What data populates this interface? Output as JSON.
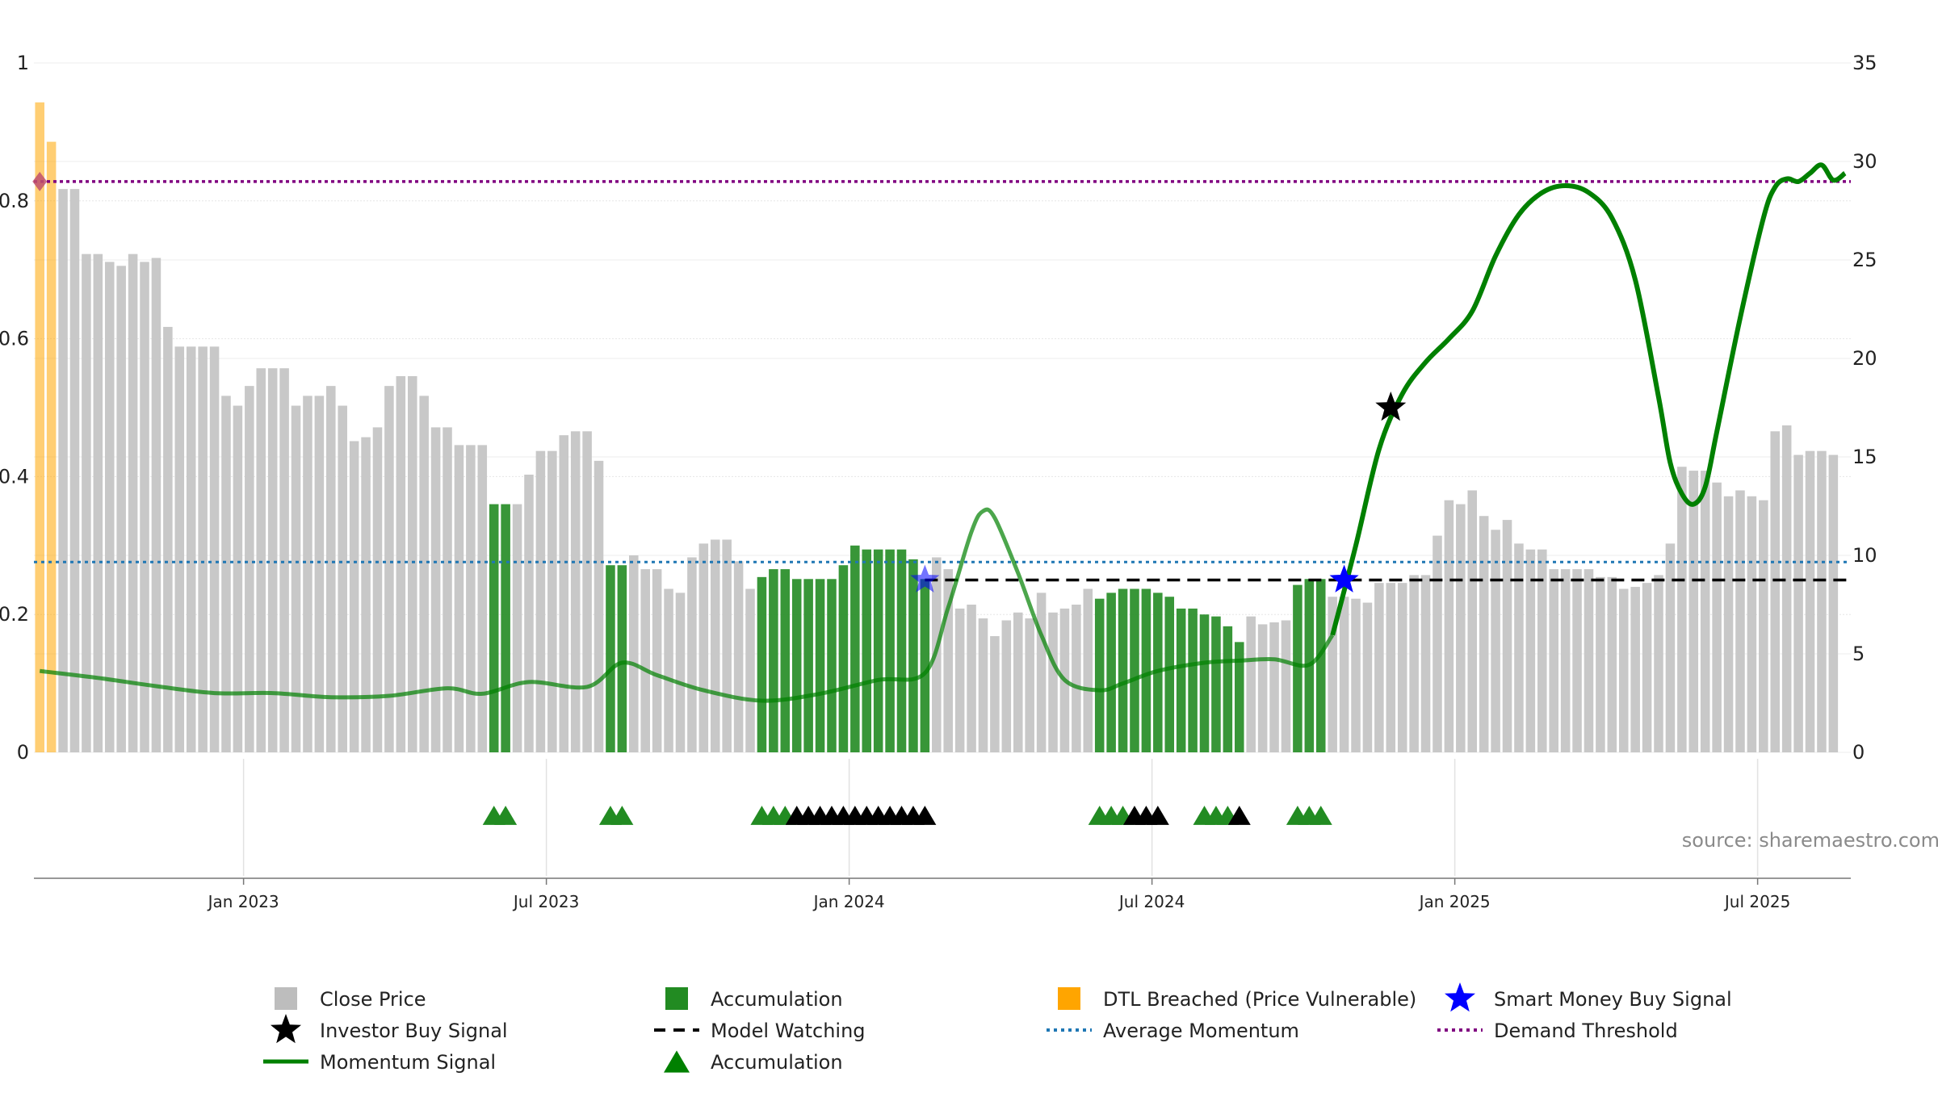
{
  "chart_data": {
    "type": "bar",
    "left_axis": {
      "ylim": [
        0,
        1
      ],
      "ticks": [
        "0",
        "0.2",
        "0.4",
        "0.6",
        "0.8",
        "1"
      ]
    },
    "right_axis": {
      "ylim": [
        0,
        35
      ],
      "ticks": [
        "0",
        "5",
        "10",
        "15",
        "20",
        "25",
        "30",
        "35"
      ]
    },
    "x_ticks": [
      "Jan 2023",
      "Jul 2023",
      "Jan 2024",
      "Jul 2024",
      "Jan 2025",
      "Jul 2025"
    ],
    "x_tick_weeks": [
      18,
      44,
      70,
      96,
      122,
      148
    ],
    "week_count": 156,
    "close_price": [
      33,
      31,
      28.6,
      28.6,
      25.3,
      25.3,
      24.9,
      24.7,
      25.3,
      24.9,
      25.1,
      21.6,
      20.6,
      20.6,
      20.6,
      20.6,
      18.1,
      17.6,
      18.6,
      19.5,
      19.5,
      19.5,
      17.6,
      18.1,
      18.1,
      18.6,
      17.6,
      15.8,
      16.0,
      16.5,
      18.6,
      19.1,
      19.1,
      18.1,
      16.5,
      16.5,
      15.6,
      15.6,
      15.6,
      12.6,
      12.6,
      12.6,
      14.1,
      15.3,
      15.3,
      16.1,
      16.3,
      16.3,
      14.8,
      9.5,
      9.5,
      10.0,
      9.3,
      9.3,
      8.3,
      8.1,
      9.9,
      10.6,
      10.8,
      10.8,
      9.7,
      8.3,
      8.9,
      9.3,
      9.3,
      8.8,
      8.8,
      8.8,
      8.8,
      9.5,
      10.5,
      10.3,
      10.3,
      10.3,
      10.3,
      9.8,
      8.8,
      9.9,
      9.3,
      7.3,
      7.5,
      6.8,
      5.9,
      6.7,
      7.1,
      6.8,
      8.1,
      7.1,
      7.3,
      7.5,
      8.3,
      7.8,
      8.1,
      8.3,
      8.3,
      8.3,
      8.1,
      7.9,
      7.3,
      7.3,
      7.0,
      6.9,
      6.4,
      5.6,
      6.9,
      6.5,
      6.6,
      6.7,
      8.5,
      8.8,
      8.8,
      7.9,
      7.9,
      7.8,
      7.6,
      8.6,
      8.6,
      8.6,
      9.0,
      9.0,
      11.0,
      12.8,
      12.6,
      13.3,
      12.0,
      11.3,
      11.8,
      10.6,
      10.3,
      10.3,
      9.3,
      9.3,
      9.3,
      9.3,
      8.9,
      8.9,
      8.3,
      8.4,
      8.6,
      9.0,
      10.6,
      14.5,
      14.3,
      14.3,
      13.7,
      13.0,
      13.3,
      13.0,
      12.8,
      16.3,
      16.6,
      15.1,
      15.3,
      15.3,
      15.1
    ],
    "accumulation_weeks": [
      39,
      40,
      49,
      50,
      62,
      63,
      64,
      65,
      66,
      67,
      68,
      69,
      70,
      71,
      72,
      73,
      74,
      75,
      76,
      91,
      92,
      93,
      94,
      95,
      96,
      97,
      98,
      99,
      100,
      101,
      102,
      103,
      108,
      109,
      110
    ],
    "dtl_breached_weeks": [
      0,
      1
    ],
    "momentum_signal": [
      [
        0,
        0.118
      ],
      [
        5,
        0.108
      ],
      [
        10,
        0.096
      ],
      [
        15,
        0.086
      ],
      [
        20,
        0.086
      ],
      [
        25,
        0.08
      ],
      [
        30,
        0.082
      ],
      [
        35,
        0.093
      ],
      [
        38,
        0.085
      ],
      [
        42,
        0.102
      ],
      [
        47,
        0.095
      ],
      [
        50,
        0.13
      ],
      [
        53,
        0.112
      ],
      [
        57,
        0.09
      ],
      [
        62,
        0.075
      ],
      [
        67,
        0.085
      ],
      [
        72,
        0.105
      ],
      [
        76,
        0.115
      ],
      [
        78,
        0.21
      ],
      [
        80,
        0.32
      ],
      [
        81,
        0.35
      ],
      [
        82,
        0.34
      ],
      [
        84,
        0.26
      ],
      [
        86,
        0.17
      ],
      [
        88,
        0.105
      ],
      [
        91,
        0.09
      ],
      [
        93,
        0.1
      ],
      [
        96,
        0.118
      ],
      [
        100,
        0.13
      ],
      [
        103,
        0.133
      ],
      [
        106,
        0.135
      ],
      [
        109,
        0.127
      ],
      [
        111,
        0.17
      ],
      [
        113,
        0.3
      ],
      [
        115,
        0.44
      ],
      [
        117,
        0.52
      ],
      [
        119,
        0.566
      ],
      [
        121,
        0.6
      ],
      [
        123,
        0.64
      ],
      [
        125,
        0.72
      ],
      [
        127,
        0.78
      ],
      [
        129,
        0.812
      ],
      [
        131,
        0.822
      ],
      [
        133,
        0.812
      ],
      [
        135,
        0.775
      ],
      [
        137,
        0.685
      ],
      [
        139,
        0.515
      ],
      [
        140,
        0.42
      ],
      [
        141,
        0.375
      ],
      [
        142,
        0.36
      ],
      [
        143,
        0.385
      ],
      [
        144,
        0.465
      ],
      [
        146,
        0.63
      ],
      [
        148,
        0.775
      ],
      [
        149,
        0.82
      ],
      [
        150,
        0.832
      ],
      [
        151,
        0.828
      ],
      [
        152,
        0.84
      ],
      [
        153,
        0.852
      ],
      [
        154,
        0.83
      ],
      [
        155,
        0.84
      ]
    ],
    "average_momentum": 0.276,
    "model_watching": {
      "value": 0.25,
      "from_week": 76
    },
    "demand_threshold": 0.828,
    "investor_buy_signal": [
      [
        116,
        0.5
      ]
    ],
    "smart_money_buy_signal": [
      [
        76,
        0.25
      ],
      [
        112,
        0.25
      ]
    ],
    "dtl_marker": [
      [
        0,
        0.828
      ]
    ],
    "accumulation_triangles": {
      "green": [
        39,
        40,
        49,
        50,
        62,
        63,
        64,
        91,
        92,
        93,
        100,
        101,
        102,
        108,
        109,
        110
      ],
      "black": [
        65,
        66,
        67,
        68,
        69,
        70,
        71,
        72,
        73,
        74,
        75,
        76,
        94,
        95,
        96,
        103
      ]
    },
    "legend": [
      {
        "label": "Close Price",
        "symbol": "square",
        "color": "#bdbdbd"
      },
      {
        "label": "Accumulation",
        "symbol": "square",
        "color": "#228b22"
      },
      {
        "label": "DTL Breached (Price Vulnerable)",
        "symbol": "square",
        "color": "#ffa500"
      },
      {
        "label": "Smart Money Buy Signal",
        "symbol": "star",
        "color": "#0000ff"
      },
      {
        "label": "Investor Buy Signal",
        "symbol": "star",
        "color": "#000000"
      },
      {
        "label": "Model Watching",
        "symbol": "dash",
        "color": "#000000"
      },
      {
        "label": "Average Momentum",
        "symbol": "dot",
        "color": "#1f77b4"
      },
      {
        "label": "Demand Threshold",
        "symbol": "dot",
        "color": "#800080"
      },
      {
        "label": "Momentum Signal",
        "symbol": "line",
        "color": "#008000"
      },
      {
        "label": "Accumulation",
        "symbol": "triangle",
        "color": "#008000"
      }
    ],
    "grid": true,
    "legend_placement": "bottom"
  },
  "source": "source: sharemaestro.com",
  "colors": {
    "close_price": "#c8c8c8",
    "accumulation": "#228b22",
    "dtl_breached": "#ffa500",
    "momentum": "#008000",
    "average_momentum": "#1f77b4",
    "demand_threshold": "#800080",
    "model_watching": "#000000",
    "smart_money": "#0000ff",
    "investor": "#000000",
    "dtl_marker": "#c0506f"
  }
}
